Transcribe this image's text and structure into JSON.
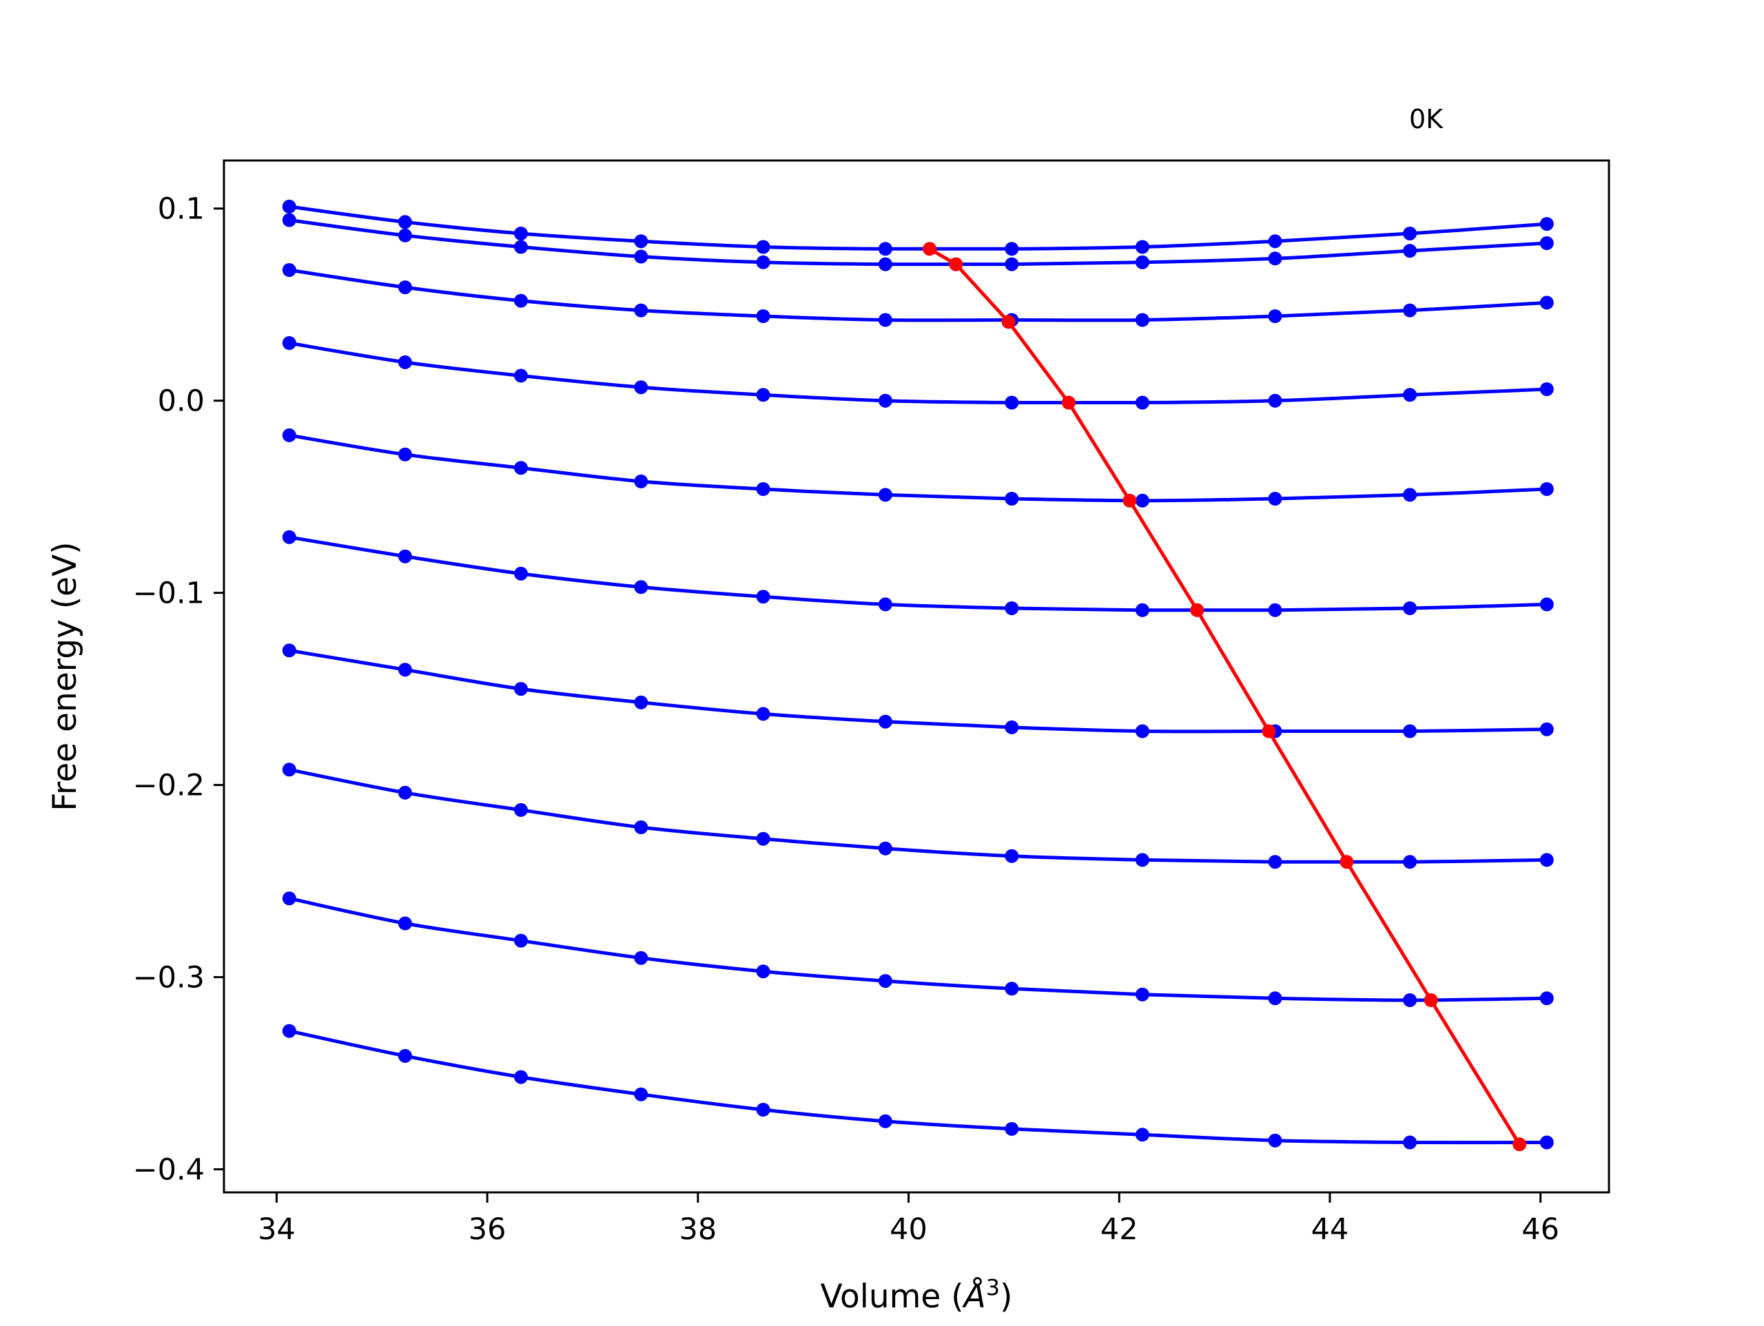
{
  "chart_data": {
    "type": "line",
    "title": "",
    "annotation": "0K",
    "xlabel_main": "Volume (",
    "xlabel_unit": "Å",
    "xlabel_sup": "3",
    "xlabel_close": ")",
    "ylabel": "Free energy (eV)",
    "xlim": [
      33.5,
      46.65
    ],
    "ylim": [
      -0.412,
      0.125
    ],
    "xticks": [
      34,
      36,
      38,
      40,
      42,
      44,
      46
    ],
    "xtick_labels": [
      "34",
      "36",
      "38",
      "40",
      "42",
      "44",
      "46"
    ],
    "yticks": [
      0.1,
      0.0,
      -0.1,
      -0.2,
      -0.3,
      -0.4
    ],
    "ytick_labels": [
      "0.1",
      "0.0",
      "−0.1",
      "−0.2",
      "−0.3",
      "−0.4"
    ],
    "grid": false,
    "colors": {
      "isotherm": "#0000ff",
      "minimum": "#ff0000"
    },
    "x": [
      34.12,
      35.22,
      36.32,
      37.46,
      38.62,
      39.78,
      40.98,
      42.22,
      43.48,
      44.76,
      46.06
    ],
    "series": [
      {
        "values": [
          0.101,
          0.093,
          0.087,
          0.083,
          0.08,
          0.079,
          0.079,
          0.08,
          0.083,
          0.087,
          0.092
        ]
      },
      {
        "values": [
          0.094,
          0.086,
          0.08,
          0.075,
          0.072,
          0.071,
          0.071,
          0.072,
          0.074,
          0.078,
          0.082
        ]
      },
      {
        "values": [
          0.068,
          0.059,
          0.052,
          0.047,
          0.044,
          0.042,
          0.042,
          0.042,
          0.044,
          0.047,
          0.051
        ]
      },
      {
        "values": [
          0.03,
          0.02,
          0.013,
          0.007,
          0.003,
          0.0,
          -0.001,
          -0.001,
          0.0,
          0.003,
          0.006
        ]
      },
      {
        "values": [
          -0.018,
          -0.028,
          -0.035,
          -0.042,
          -0.046,
          -0.049,
          -0.051,
          -0.052,
          -0.051,
          -0.049,
          -0.046
        ]
      },
      {
        "values": [
          -0.071,
          -0.081,
          -0.09,
          -0.097,
          -0.102,
          -0.106,
          -0.108,
          -0.109,
          -0.109,
          -0.108,
          -0.106
        ]
      },
      {
        "values": [
          -0.13,
          -0.14,
          -0.15,
          -0.157,
          -0.163,
          -0.167,
          -0.17,
          -0.172,
          -0.172,
          -0.172,
          -0.171
        ]
      },
      {
        "values": [
          -0.192,
          -0.204,
          -0.213,
          -0.222,
          -0.228,
          -0.233,
          -0.237,
          -0.239,
          -0.24,
          -0.24,
          -0.239
        ]
      },
      {
        "values": [
          -0.259,
          -0.272,
          -0.281,
          -0.29,
          -0.297,
          -0.302,
          -0.306,
          -0.309,
          -0.311,
          -0.312,
          -0.311
        ]
      },
      {
        "values": [
          -0.328,
          -0.341,
          -0.352,
          -0.361,
          -0.369,
          -0.375,
          -0.379,
          -0.382,
          -0.385,
          -0.386,
          -0.386
        ]
      }
    ],
    "minimum_curve": {
      "x": [
        40.2,
        40.45,
        40.95,
        41.52,
        42.1,
        42.74,
        43.42,
        44.16,
        44.96,
        45.8
      ],
      "values": [
        0.079,
        0.071,
        0.041,
        -0.001,
        -0.052,
        -0.109,
        -0.172,
        -0.24,
        -0.312,
        -0.387
      ]
    }
  }
}
